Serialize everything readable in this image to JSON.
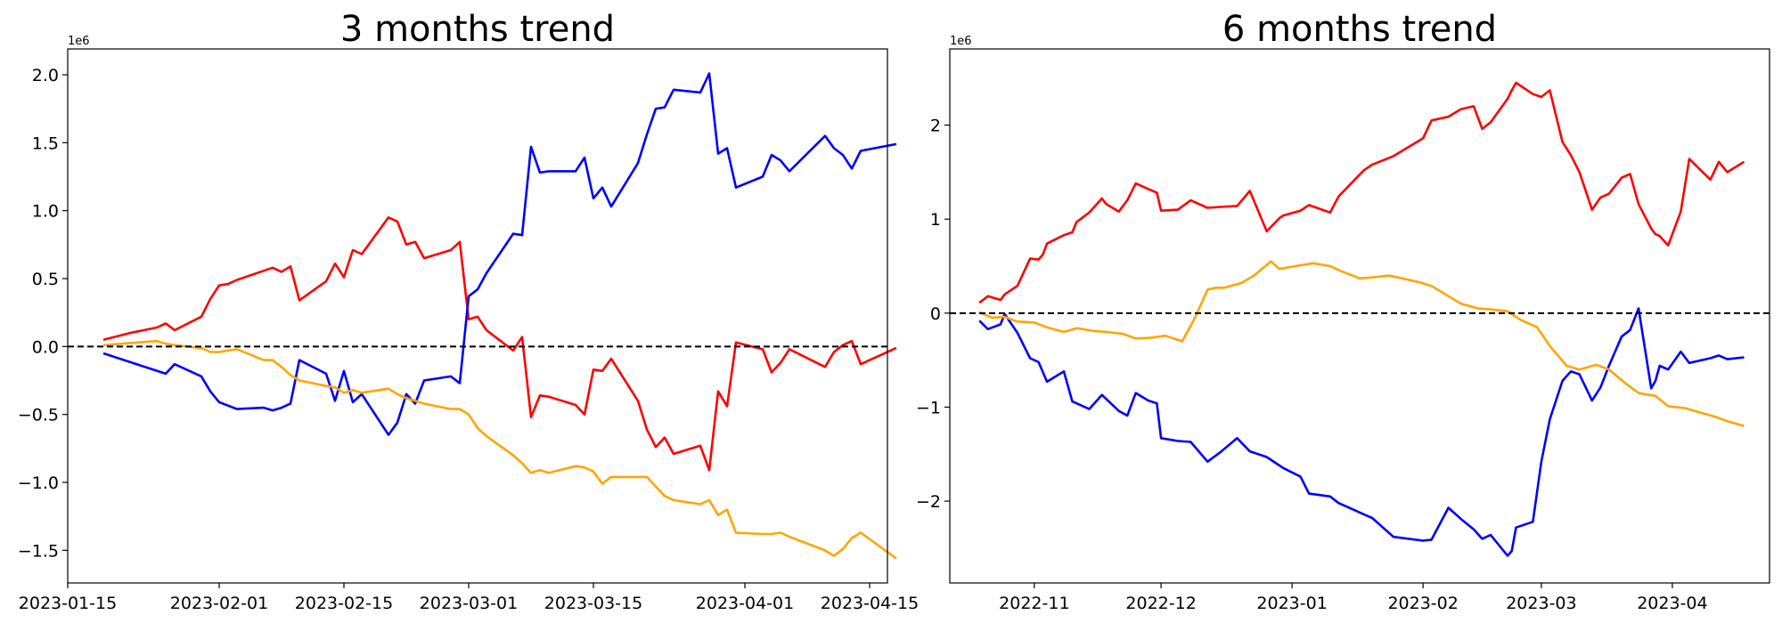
{
  "chart_data": [
    {
      "type": "line",
      "title": "3 months trend",
      "xlabel": "",
      "ylabel": "",
      "offset_text": "1e6",
      "x_tick_labels": [
        "2023-01-15",
        "2023-02-01",
        "2023-02-15",
        "2023-03-01",
        "2023-03-15",
        "2023-04-01",
        "2023-04-15"
      ],
      "y_tick_labels": [
        "2.0",
        "1.5",
        "1.0",
        "0.5",
        "0.0",
        "−0.5",
        "−1.0",
        "−1.5"
      ],
      "x_ticks": [
        "2023-01-15",
        "2023-02-01",
        "2023-02-15",
        "2023-03-01",
        "2023-03-15",
        "2023-04-01",
        "2023-04-15"
      ],
      "y_ticks": [
        2.0,
        1.5,
        1.0,
        0.5,
        0.0,
        -0.5,
        -1.0,
        -1.5
      ],
      "xlim": [
        "2023-01-15",
        "2023-04-17"
      ],
      "ylim": [
        -1.74,
        2.19
      ],
      "y_multiplier": 1000000,
      "grid": false,
      "reference_line": {
        "y": 0,
        "style": "dashed",
        "color": "#000000"
      },
      "series": [
        {
          "color": "#ff0000",
          "x": [
            "2023-01-19",
            "2023-01-22",
            "2023-01-25",
            "2023-01-26",
            "2023-01-27",
            "2023-01-30",
            "2023-01-31",
            "2023-02-01",
            "2023-02-02",
            "2023-02-03",
            "2023-02-07",
            "2023-02-08",
            "2023-02-09",
            "2023-02-10",
            "2023-02-13",
            "2023-02-14",
            "2023-02-15",
            "2023-02-16",
            "2023-02-17",
            "2023-02-20",
            "2023-02-21",
            "2023-02-22",
            "2023-02-23",
            "2023-02-24",
            "2023-02-27",
            "2023-02-28",
            "2023-03-01",
            "2023-03-02",
            "2023-03-03",
            "2023-03-06",
            "2023-03-07",
            "2023-03-08",
            "2023-03-09",
            "2023-03-10",
            "2023-03-13",
            "2023-03-14",
            "2023-03-15",
            "2023-03-16",
            "2023-03-17",
            "2023-03-20",
            "2023-03-21",
            "2023-03-22",
            "2023-03-23",
            "2023-03-24",
            "2023-03-27",
            "2023-03-28",
            "2023-03-29",
            "2023-03-30",
            "2023-03-31",
            "2023-04-03",
            "2023-04-04",
            "2023-04-05",
            "2023-04-06",
            "2023-04-10",
            "2023-04-11",
            "2023-04-12",
            "2023-04-13",
            "2023-04-14",
            "2023-04-18"
          ],
          "values": [
            0.05,
            0.1,
            0.14,
            0.17,
            0.12,
            0.22,
            0.35,
            0.45,
            0.46,
            0.49,
            0.58,
            0.55,
            0.59,
            0.34,
            0.48,
            0.61,
            0.51,
            0.71,
            0.68,
            0.95,
            0.92,
            0.75,
            0.77,
            0.65,
            0.71,
            0.77,
            0.2,
            0.22,
            0.12,
            -0.03,
            0.07,
            -0.52,
            -0.36,
            -0.37,
            -0.43,
            -0.5,
            -0.17,
            -0.18,
            -0.09,
            -0.4,
            -0.61,
            -0.74,
            -0.67,
            -0.79,
            -0.73,
            -0.91,
            -0.33,
            -0.44,
            0.03,
            -0.02,
            -0.19,
            -0.12,
            -0.02,
            -0.15,
            -0.04,
            0.01,
            0.04,
            -0.13,
            -0.01
          ]
        },
        {
          "color": "#0000ff",
          "x": [
            "2023-01-19",
            "2023-01-26",
            "2023-01-27",
            "2023-01-30",
            "2023-01-31",
            "2023-02-01",
            "2023-02-03",
            "2023-02-06",
            "2023-02-07",
            "2023-02-08",
            "2023-02-09",
            "2023-02-10",
            "2023-02-13",
            "2023-02-14",
            "2023-02-15",
            "2023-02-16",
            "2023-02-17",
            "2023-02-20",
            "2023-02-21",
            "2023-02-22",
            "2023-02-23",
            "2023-02-24",
            "2023-02-27",
            "2023-02-28",
            "2023-03-01",
            "2023-03-02",
            "2023-03-03",
            "2023-03-06",
            "2023-03-07",
            "2023-03-08",
            "2023-03-09",
            "2023-03-10",
            "2023-03-13",
            "2023-03-14",
            "2023-03-15",
            "2023-03-16",
            "2023-03-17",
            "2023-03-20",
            "2023-03-21",
            "2023-03-22",
            "2023-03-23",
            "2023-03-24",
            "2023-03-27",
            "2023-03-28",
            "2023-03-29",
            "2023-03-30",
            "2023-03-31",
            "2023-04-03",
            "2023-04-04",
            "2023-04-05",
            "2023-04-06",
            "2023-04-10",
            "2023-04-11",
            "2023-04-12",
            "2023-04-13",
            "2023-04-14",
            "2023-04-18"
          ],
          "values": [
            -0.05,
            -0.2,
            -0.13,
            -0.22,
            -0.33,
            -0.41,
            -0.46,
            -0.45,
            -0.47,
            -0.45,
            -0.42,
            -0.1,
            -0.2,
            -0.4,
            -0.18,
            -0.41,
            -0.35,
            -0.65,
            -0.56,
            -0.35,
            -0.42,
            -0.25,
            -0.22,
            -0.27,
            0.37,
            0.42,
            0.54,
            0.83,
            0.82,
            1.47,
            1.28,
            1.29,
            1.29,
            1.39,
            1.09,
            1.17,
            1.03,
            1.35,
            1.56,
            1.75,
            1.76,
            1.89,
            1.87,
            2.01,
            1.42,
            1.46,
            1.17,
            1.25,
            1.41,
            1.37,
            1.29,
            1.55,
            1.46,
            1.41,
            1.31,
            1.44,
            1.49
          ]
        },
        {
          "color": "#ffa500",
          "x": [
            "2023-01-19",
            "2023-01-25",
            "2023-01-26",
            "2023-01-27",
            "2023-01-30",
            "2023-01-31",
            "2023-02-01",
            "2023-02-02",
            "2023-02-03",
            "2023-02-06",
            "2023-02-07",
            "2023-02-08",
            "2023-02-09",
            "2023-02-10",
            "2023-02-13",
            "2023-02-14",
            "2023-02-15",
            "2023-02-16",
            "2023-02-17",
            "2023-02-20",
            "2023-02-21",
            "2023-02-22",
            "2023-02-23",
            "2023-02-24",
            "2023-02-27",
            "2023-02-28",
            "2023-03-01",
            "2023-03-02",
            "2023-03-03",
            "2023-03-06",
            "2023-03-07",
            "2023-03-08",
            "2023-03-09",
            "2023-03-10",
            "2023-03-13",
            "2023-03-14",
            "2023-03-15",
            "2023-03-16",
            "2023-03-17",
            "2023-03-20",
            "2023-03-21",
            "2023-03-22",
            "2023-03-23",
            "2023-03-24",
            "2023-03-27",
            "2023-03-28",
            "2023-03-29",
            "2023-03-30",
            "2023-03-31",
            "2023-04-03",
            "2023-04-04",
            "2023-04-05",
            "2023-04-06",
            "2023-04-10",
            "2023-04-11",
            "2023-04-12",
            "2023-04-13",
            "2023-04-14",
            "2023-04-18"
          ],
          "values": [
            0.01,
            0.04,
            0.02,
            0.01,
            -0.01,
            -0.04,
            -0.04,
            -0.03,
            -0.02,
            -0.1,
            -0.1,
            -0.15,
            -0.21,
            -0.25,
            -0.29,
            -0.3,
            -0.34,
            -0.32,
            -0.34,
            -0.31,
            -0.35,
            -0.38,
            -0.4,
            -0.42,
            -0.46,
            -0.46,
            -0.5,
            -0.6,
            -0.66,
            -0.8,
            -0.86,
            -0.93,
            -0.91,
            -0.93,
            -0.88,
            -0.89,
            -0.92,
            -1.01,
            -0.96,
            -0.96,
            -0.96,
            -1.03,
            -1.1,
            -1.13,
            -1.16,
            -1.13,
            -1.24,
            -1.2,
            -1.37,
            -1.38,
            -1.38,
            -1.37,
            -1.4,
            -1.5,
            -1.54,
            -1.49,
            -1.41,
            -1.37,
            -1.56
          ]
        }
      ]
    },
    {
      "type": "line",
      "title": "6 months trend",
      "xlabel": "",
      "ylabel": "",
      "offset_text": "1e6",
      "x_tick_labels": [
        "2022-11",
        "2022-12",
        "2023-01",
        "2023-02",
        "2023-03",
        "2023-04"
      ],
      "y_tick_labels": [
        "2",
        "1",
        "0",
        "−1",
        "−2"
      ],
      "x_ticks": [
        "2022-11-01",
        "2022-12-01",
        "2023-01-01",
        "2023-02-01",
        "2023-03-01",
        "2023-04-01"
      ],
      "y_ticks": [
        2,
        1,
        0,
        -1,
        -2
      ],
      "xlim": [
        "2022-10-12",
        "2023-04-24"
      ],
      "ylim": [
        -2.87,
        2.81
      ],
      "y_multiplier": 1000000,
      "grid": false,
      "reference_line": {
        "y": 0,
        "style": "dashed",
        "color": "#000000"
      },
      "series": [
        {
          "color": "#ff0000",
          "x": [
            "2022-10-19",
            "2022-10-21",
            "2022-10-24",
            "2022-10-25",
            "2022-10-28",
            "2022-10-31",
            "2022-11-02",
            "2022-11-03",
            "2022-11-04",
            "2022-11-08",
            "2022-11-10",
            "2022-11-11",
            "2022-11-14",
            "2022-11-17",
            "2022-11-18",
            "2022-11-21",
            "2022-11-23",
            "2022-11-25",
            "2022-11-28",
            "2022-11-30",
            "2022-12-01",
            "2022-12-05",
            "2022-12-08",
            "2022-12-12",
            "2022-12-15",
            "2022-12-19",
            "2022-12-22",
            "2022-12-26",
            "2022-12-29",
            "2022-12-30",
            "2023-01-03",
            "2023-01-05",
            "2023-01-10",
            "2023-01-12",
            "2023-01-18",
            "2023-01-20",
            "2023-01-25",
            "2023-02-01",
            "2023-02-03",
            "2023-02-07",
            "2023-02-10",
            "2023-02-13",
            "2023-02-15",
            "2023-02-17",
            "2023-02-21",
            "2023-02-22",
            "2023-02-23",
            "2023-02-27",
            "2023-03-01",
            "2023-03-03",
            "2023-03-06",
            "2023-03-08",
            "2023-03-10",
            "2023-03-13",
            "2023-03-15",
            "2023-03-17",
            "2023-03-20",
            "2023-03-22",
            "2023-03-24",
            "2023-03-27",
            "2023-03-28",
            "2023-03-29",
            "2023-03-31",
            "2023-04-03",
            "2023-04-05",
            "2023-04-10",
            "2023-04-12",
            "2023-04-14",
            "2023-04-18"
          ],
          "values": [
            0.11,
            0.18,
            0.14,
            0.2,
            0.29,
            0.58,
            0.57,
            0.62,
            0.74,
            0.83,
            0.86,
            0.97,
            1.07,
            1.22,
            1.16,
            1.08,
            1.2,
            1.38,
            1.32,
            1.28,
            1.09,
            1.1,
            1.2,
            1.12,
            1.13,
            1.14,
            1.3,
            0.87,
            1.01,
            1.04,
            1.09,
            1.15,
            1.07,
            1.24,
            1.52,
            1.58,
            1.67,
            1.86,
            2.05,
            2.09,
            2.17,
            2.2,
            1.96,
            2.03,
            2.28,
            2.37,
            2.45,
            2.33,
            2.3,
            2.37,
            1.82,
            1.68,
            1.5,
            1.1,
            1.23,
            1.27,
            1.44,
            1.48,
            1.16,
            0.9,
            0.84,
            0.82,
            0.72,
            1.08,
            1.64,
            1.42,
            1.61,
            1.5,
            1.61
          ]
        },
        {
          "color": "#0000ff",
          "x": [
            "2022-10-19",
            "2022-10-21",
            "2022-10-24",
            "2022-10-25",
            "2022-10-28",
            "2022-10-31",
            "2022-11-02",
            "2022-11-04",
            "2022-11-08",
            "2022-11-10",
            "2022-11-14",
            "2022-11-17",
            "2022-11-21",
            "2022-11-23",
            "2022-11-25",
            "2022-11-28",
            "2022-11-30",
            "2022-12-01",
            "2022-12-05",
            "2022-12-08",
            "2022-12-12",
            "2022-12-15",
            "2022-12-19",
            "2022-12-22",
            "2022-12-26",
            "2022-12-29",
            "2022-12-30",
            "2023-01-03",
            "2023-01-05",
            "2023-01-10",
            "2023-01-12",
            "2023-01-18",
            "2023-01-20",
            "2023-01-25",
            "2023-02-01",
            "2023-02-03",
            "2023-02-07",
            "2023-02-10",
            "2023-02-13",
            "2023-02-15",
            "2023-02-17",
            "2023-02-21",
            "2023-02-22",
            "2023-02-23",
            "2023-02-27",
            "2023-03-01",
            "2023-03-03",
            "2023-03-06",
            "2023-03-08",
            "2023-03-10",
            "2023-03-13",
            "2023-03-15",
            "2023-03-17",
            "2023-03-20",
            "2023-03-22",
            "2023-03-24",
            "2023-03-27",
            "2023-03-28",
            "2023-03-29",
            "2023-03-31",
            "2023-04-03",
            "2023-04-05",
            "2023-04-10",
            "2023-04-12",
            "2023-04-14",
            "2023-04-18"
          ],
          "values": [
            -0.08,
            -0.17,
            -0.12,
            -0.01,
            -0.21,
            -0.48,
            -0.52,
            -0.73,
            -0.62,
            -0.94,
            -1.02,
            -0.87,
            -1.04,
            -1.09,
            -0.85,
            -0.93,
            -0.96,
            -1.33,
            -1.36,
            -1.37,
            -1.58,
            -1.48,
            -1.33,
            -1.47,
            -1.53,
            -1.62,
            -1.65,
            -1.74,
            -1.92,
            -1.95,
            -2.02,
            -2.14,
            -2.18,
            -2.38,
            -2.42,
            -2.41,
            -2.07,
            -2.19,
            -2.3,
            -2.4,
            -2.36,
            -2.58,
            -2.53,
            -2.28,
            -2.22,
            -1.58,
            -1.13,
            -0.72,
            -0.62,
            -0.65,
            -0.93,
            -0.79,
            -0.56,
            -0.25,
            -0.18,
            0.05,
            -0.8,
            -0.72,
            -0.56,
            -0.6,
            -0.41,
            -0.53,
            -0.48,
            -0.45,
            -0.49,
            -0.47
          ]
        },
        {
          "color": "#ffa500",
          "x": [
            "2022-10-19",
            "2022-10-22",
            "2022-10-25",
            "2022-10-28",
            "2022-11-01",
            "2022-11-04",
            "2022-11-08",
            "2022-11-11",
            "2022-11-15",
            "2022-11-18",
            "2022-11-22",
            "2022-11-25",
            "2022-11-29",
            "2022-12-02",
            "2022-12-06",
            "2022-12-09",
            "2022-12-12",
            "2022-12-14",
            "2022-12-16",
            "2022-12-20",
            "2022-12-23",
            "2022-12-27",
            "2022-12-29",
            "2023-01-03",
            "2023-01-06",
            "2023-01-10",
            "2023-01-13",
            "2023-01-17",
            "2023-01-20",
            "2023-01-24",
            "2023-01-27",
            "2023-01-31",
            "2023-02-03",
            "2023-02-07",
            "2023-02-10",
            "2023-02-14",
            "2023-02-17",
            "2023-02-21",
            "2023-02-24",
            "2023-02-28",
            "2023-03-03",
            "2023-03-07",
            "2023-03-10",
            "2023-03-14",
            "2023-03-17",
            "2023-03-21",
            "2023-03-24",
            "2023-03-28",
            "2023-03-31",
            "2023-04-04",
            "2023-04-07",
            "2023-04-11",
            "2023-04-14",
            "2023-04-18"
          ],
          "values": [
            0.01,
            -0.05,
            -0.04,
            -0.09,
            -0.1,
            -0.15,
            -0.2,
            -0.16,
            -0.19,
            -0.2,
            -0.22,
            -0.27,
            -0.26,
            -0.24,
            -0.3,
            -0.05,
            0.25,
            0.27,
            0.27,
            0.32,
            0.4,
            0.55,
            0.47,
            0.51,
            0.53,
            0.5,
            0.44,
            0.37,
            0.38,
            0.4,
            0.37,
            0.33,
            0.29,
            0.18,
            0.1,
            0.05,
            0.04,
            0.02,
            -0.07,
            -0.15,
            -0.35,
            -0.56,
            -0.6,
            -0.55,
            -0.6,
            -0.75,
            -0.85,
            -0.88,
            -0.99,
            -1.01,
            -1.05,
            -1.1,
            -1.15,
            -1.2
          ]
        }
      ]
    }
  ]
}
